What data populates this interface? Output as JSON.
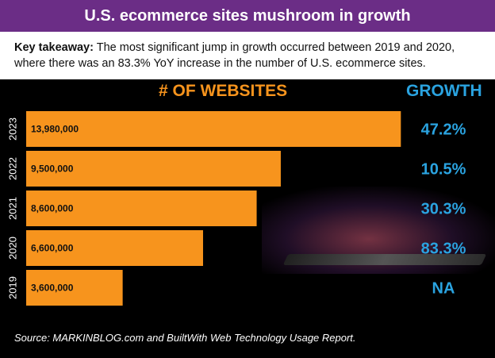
{
  "header": {
    "title": "U.S. ecommerce sites mushroom in growth",
    "takeaway_label": "Key takeaway:",
    "takeaway_text": "The most significant jump in growth occurred between 2019 and 2020, where there was an 83.3% YoY increase in the number of U.S. ecommerce sites."
  },
  "columns": {
    "websites": "# OF WEBSITES",
    "growth": "GROWTH"
  },
  "colors": {
    "title_bar": "#6b2d86",
    "bar": "#f7941d",
    "growth_text": "#2aa3e0",
    "background": "#000000"
  },
  "chart_data": {
    "type": "bar",
    "orientation": "horizontal",
    "categories": [
      "2023",
      "2022",
      "2021",
      "2020",
      "2019"
    ],
    "values": [
      13980000,
      9500000,
      8600000,
      6600000,
      3600000
    ],
    "value_labels": [
      "13,980,000",
      "9,500,000",
      "8,600,000",
      "6,600,000",
      "3,600,000"
    ],
    "growth_labels": [
      "47.2%",
      "10.5%",
      "30.3%",
      "83.3%",
      "NA"
    ],
    "xlim": [
      0,
      14000000
    ],
    "grid": false
  },
  "footer": {
    "source": "Source:  MARKINBLOG.com and BuiltWith Web Technology Usage Report."
  }
}
